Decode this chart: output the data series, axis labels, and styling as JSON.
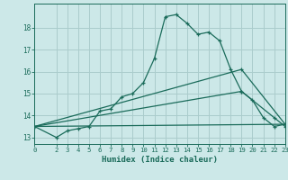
{
  "xlabel": "Humidex (Indice chaleur)",
  "background_color": "#cce8e8",
  "grid_color": "#aacccc",
  "line_color": "#1a6b5a",
  "xlim": [
    0,
    23
  ],
  "ylim": [
    12.7,
    19.1
  ],
  "yticks": [
    13,
    14,
    15,
    16,
    17,
    18
  ],
  "xticks": [
    0,
    2,
    3,
    4,
    5,
    6,
    7,
    8,
    9,
    10,
    11,
    12,
    13,
    14,
    15,
    16,
    17,
    18,
    19,
    20,
    21,
    22,
    23
  ],
  "series1_x": [
    0,
    2,
    3,
    4,
    5,
    6,
    7,
    8,
    9,
    10,
    11,
    12,
    13,
    14,
    15,
    16,
    17,
    18,
    19,
    20,
    21,
    22,
    23
  ],
  "series1_y": [
    13.5,
    13.0,
    13.3,
    13.4,
    13.5,
    14.2,
    14.3,
    14.85,
    15.0,
    15.5,
    16.6,
    18.5,
    18.6,
    18.2,
    17.7,
    17.8,
    17.4,
    16.1,
    15.1,
    14.7,
    13.9,
    13.5,
    13.6
  ],
  "series2_x": [
    0,
    23
  ],
  "series2_y": [
    13.5,
    13.6
  ],
  "series3_x": [
    0,
    19,
    22,
    23
  ],
  "series3_y": [
    13.5,
    15.1,
    13.9,
    13.5
  ],
  "series4_x": [
    0,
    19,
    23
  ],
  "series4_y": [
    13.5,
    16.1,
    13.6
  ]
}
